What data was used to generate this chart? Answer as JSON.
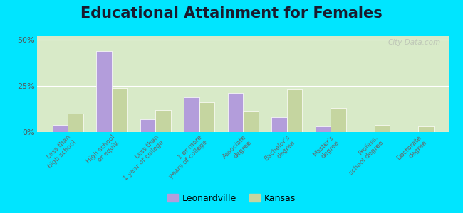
{
  "title": "Educational Attainment for Females",
  "categories": [
    "Less than\nhigh school",
    "High school\nor equiv.",
    "Less than\n1 year of college",
    "1 or more\nyears of college",
    "Associate\ndegree",
    "Bachelor's\ndegree",
    "Master's\ndegree",
    "Profess.\nschool degree",
    "Doctorate\ndegree"
  ],
  "leonardville": [
    4,
    44,
    7,
    19,
    21,
    8,
    3,
    0,
    0
  ],
  "kansas": [
    10,
    24,
    12,
    16,
    11,
    23,
    13,
    4,
    3
  ],
  "leonardville_color": "#b39ddb",
  "kansas_color": "#c5d5a0",
  "background_color": "#d8eac8",
  "outer_background": "#00e5ff",
  "ylim": [
    0,
    52
  ],
  "yticks": [
    0,
    25,
    50
  ],
  "ytick_labels": [
    "0%",
    "25%",
    "50%"
  ],
  "bar_width": 0.35,
  "title_fontsize": 15,
  "legend_labels": [
    "Leonardville",
    "Kansas"
  ]
}
